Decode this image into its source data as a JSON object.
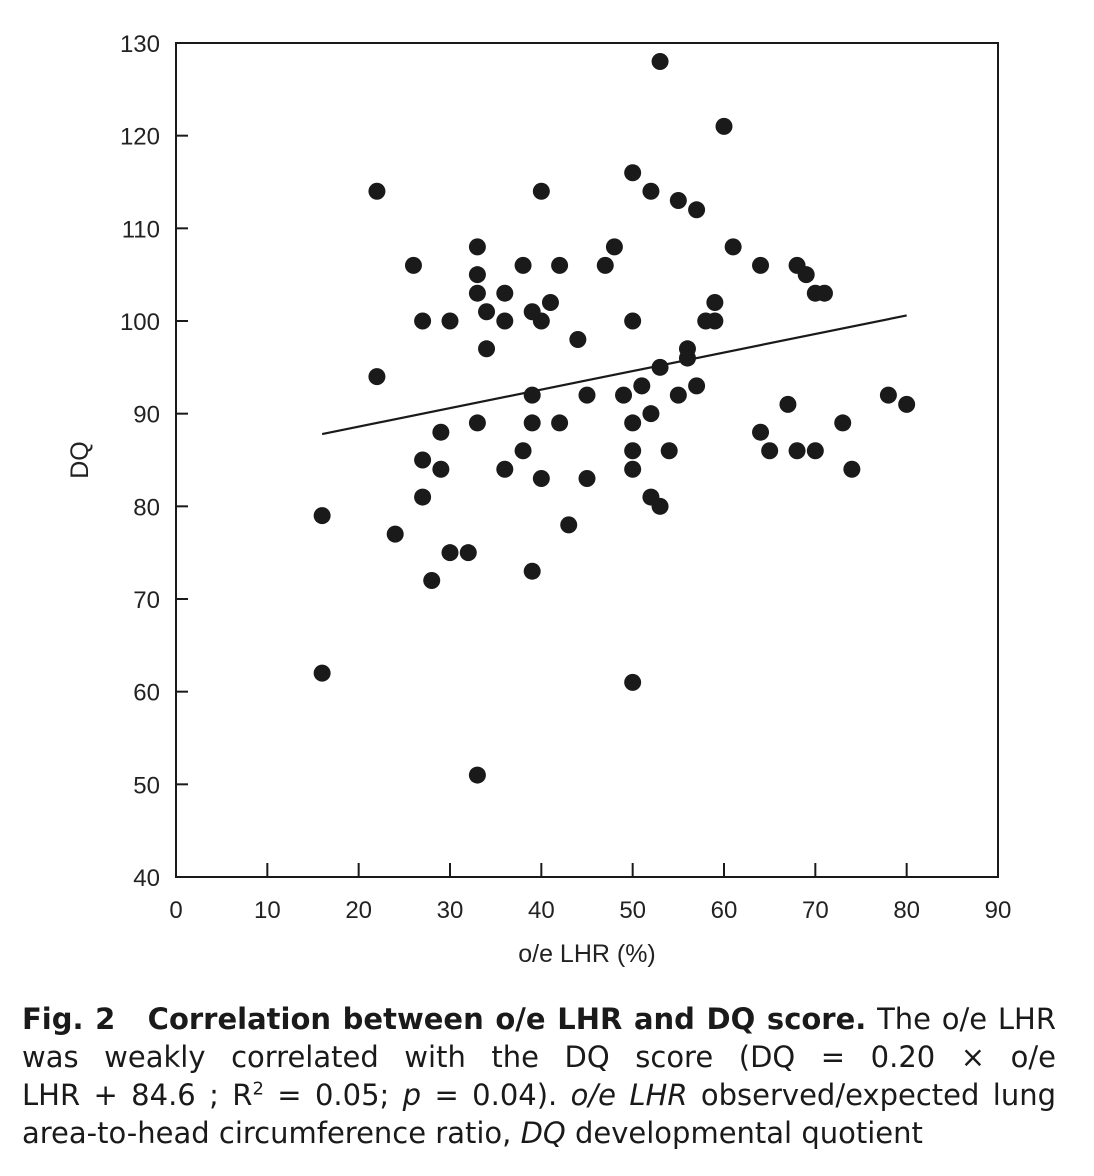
{
  "chart_data": {
    "type": "scatter",
    "title": "",
    "xlabel": "o/e LHR (%)",
    "ylabel": "DQ",
    "xlim": [
      0,
      90
    ],
    "ylim": [
      40,
      130
    ],
    "xticks": [
      0,
      10,
      20,
      30,
      40,
      50,
      60,
      70,
      80,
      90
    ],
    "yticks": [
      40,
      50,
      60,
      70,
      80,
      90,
      100,
      110,
      120,
      130
    ],
    "grid": false,
    "legend": "none",
    "points": [
      [
        16,
        79
      ],
      [
        16,
        62
      ],
      [
        22,
        114
      ],
      [
        22,
        94
      ],
      [
        24,
        77
      ],
      [
        26,
        106
      ],
      [
        27,
        100
      ],
      [
        27,
        85
      ],
      [
        27,
        81
      ],
      [
        28,
        72
      ],
      [
        29,
        88
      ],
      [
        29,
        84
      ],
      [
        30,
        100
      ],
      [
        30,
        75
      ],
      [
        32,
        75
      ],
      [
        33,
        108
      ],
      [
        33,
        105
      ],
      [
        33,
        103
      ],
      [
        33,
        89
      ],
      [
        33,
        51
      ],
      [
        34,
        101
      ],
      [
        34,
        97
      ],
      [
        36,
        103
      ],
      [
        36,
        100
      ],
      [
        36,
        84
      ],
      [
        38,
        106
      ],
      [
        38,
        86
      ],
      [
        39,
        101
      ],
      [
        39,
        92
      ],
      [
        39,
        89
      ],
      [
        39,
        73
      ],
      [
        40,
        114
      ],
      [
        40,
        100
      ],
      [
        40,
        83
      ],
      [
        41,
        102
      ],
      [
        42,
        106
      ],
      [
        42,
        89
      ],
      [
        43,
        78
      ],
      [
        44,
        98
      ],
      [
        45,
        92
      ],
      [
        45,
        83
      ],
      [
        47,
        106
      ],
      [
        48,
        108
      ],
      [
        49,
        92
      ],
      [
        50,
        116
      ],
      [
        50,
        100
      ],
      [
        50,
        89
      ],
      [
        50,
        86
      ],
      [
        50,
        84
      ],
      [
        50,
        61
      ],
      [
        51,
        93
      ],
      [
        52,
        114
      ],
      [
        52,
        90
      ],
      [
        52,
        81
      ],
      [
        53,
        128
      ],
      [
        53,
        95
      ],
      [
        53,
        80
      ],
      [
        54,
        86
      ],
      [
        55,
        113
      ],
      [
        55,
        92
      ],
      [
        56,
        97
      ],
      [
        56,
        96
      ],
      [
        57,
        112
      ],
      [
        57,
        93
      ],
      [
        58,
        100
      ],
      [
        59,
        102
      ],
      [
        59,
        100
      ],
      [
        60,
        121
      ],
      [
        61,
        108
      ],
      [
        64,
        106
      ],
      [
        64,
        88
      ],
      [
        65,
        86
      ],
      [
        67,
        91
      ],
      [
        68,
        106
      ],
      [
        68,
        86
      ],
      [
        69,
        105
      ],
      [
        70,
        103
      ],
      [
        70,
        86
      ],
      [
        71,
        103
      ],
      [
        73,
        89
      ],
      [
        74,
        84
      ],
      [
        78,
        92
      ],
      [
        80,
        91
      ]
    ],
    "regression": {
      "label": "DQ = 0.20 × o/e LHR + 84.6",
      "slope": 0.2,
      "intercept": 84.6,
      "x_range": [
        16,
        80
      ]
    }
  },
  "caption": {
    "fig_label": "Fig. 2",
    "title": "Correlation between o/e LHR and DQ score.",
    "line1_rest": "The o/e LHR",
    "line2": "was weakly correlated with the DQ score (DQ = 0.20 × o/e",
    "line3_a": "LHR + 84.6 ; R",
    "line3_sup": "2",
    "line3_b": " = 0.05; ",
    "line3_p": "p",
    "line3_c": " = 0.04). ",
    "line3_abbr": "o/e LHR",
    "line3_d": " observed/expected lung",
    "line4_a": "area-to-head circumference ratio, ",
    "line4_abbr": "DQ",
    "line4_b": " developmental quotient"
  }
}
